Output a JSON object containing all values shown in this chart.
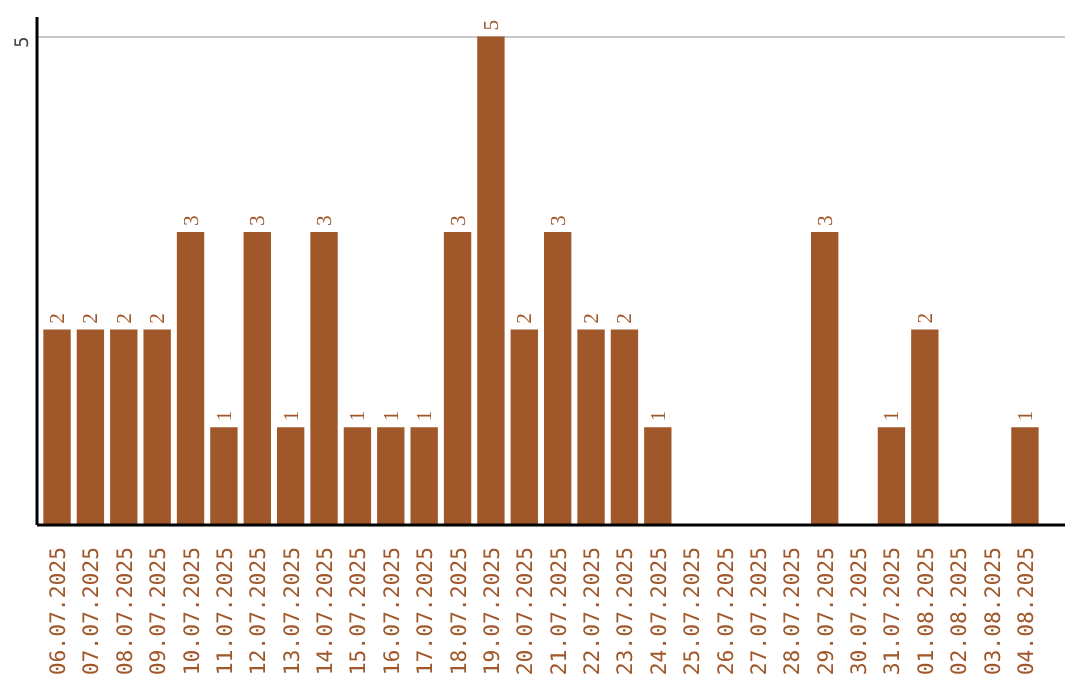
{
  "chart_data": {
    "type": "bar",
    "categories": [
      "06.07.2025",
      "07.07.2025",
      "08.07.2025",
      "09.07.2025",
      "10.07.2025",
      "11.07.2025",
      "12.07.2025",
      "13.07.2025",
      "14.07.2025",
      "15.07.2025",
      "16.07.2025",
      "17.07.2025",
      "18.07.2025",
      "19.07.2025",
      "20.07.2025",
      "21.07.2025",
      "22.07.2025",
      "23.07.2025",
      "24.07.2025",
      "25.07.2025",
      "26.07.2025",
      "27.07.2025",
      "28.07.2025",
      "29.07.2025",
      "30.07.2025",
      "31.07.2025",
      "01.08.2025",
      "02.08.2025",
      "03.08.2025",
      "04.08.2025"
    ],
    "values": [
      2,
      2,
      2,
      2,
      3,
      1,
      3,
      1,
      3,
      1,
      1,
      1,
      3,
      5,
      2,
      3,
      2,
      2,
      1,
      0,
      0,
      0,
      0,
      3,
      0,
      1,
      2,
      0,
      0,
      1
    ],
    "value_labels": [
      "2",
      "2",
      "2",
      "2",
      "3",
      "1",
      "3",
      "1",
      "3",
      "1",
      "1",
      "1",
      "3",
      "5",
      "2",
      "3",
      "2",
      "2",
      "1",
      null,
      null,
      null,
      null,
      "3",
      null,
      "1",
      "2",
      null,
      null,
      "1"
    ],
    "color": "#a0582a",
    "ylim": [
      0,
      5.2
    ],
    "yticks": [
      5
    ],
    "grid": "y"
  }
}
